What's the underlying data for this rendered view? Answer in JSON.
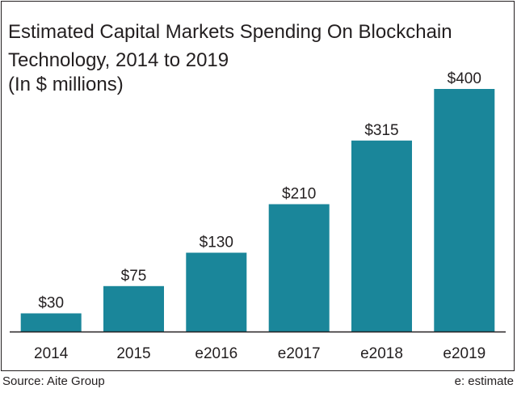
{
  "chart_data": {
    "type": "bar",
    "title_lines": [
      "Estimated Capital Markets Spending On Blockchain",
      "Technology, 2014 to 2019",
      "(In $ millions)"
    ],
    "categories": [
      "2014",
      "2015",
      "e2016",
      "e2017",
      "e2018",
      "e2019"
    ],
    "values": [
      30,
      75,
      130,
      210,
      315,
      400
    ],
    "value_labels": [
      "$30",
      "$75",
      "$130",
      "$210",
      "$315",
      "$400"
    ],
    "ylim": [
      0,
      400
    ],
    "grid": false,
    "legend": "none",
    "bar_color": "#1a869a",
    "axis_color": "#231f20"
  },
  "footer": {
    "source": "Source: Aite Group",
    "note": "e: estimate"
  }
}
